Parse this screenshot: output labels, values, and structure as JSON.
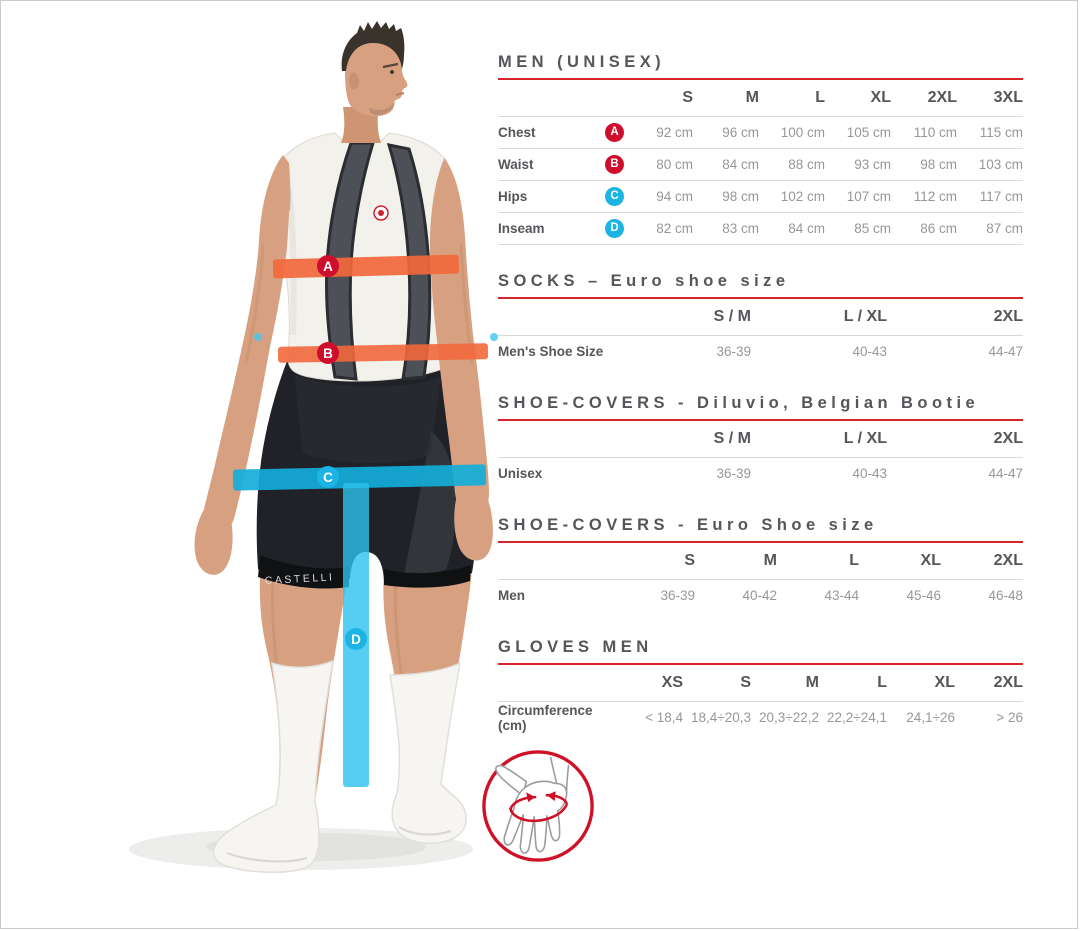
{
  "page": {
    "background": "#FFFFFF",
    "frame_border": "#CBCBCB"
  },
  "colors": {
    "accent_red": "#D6252B",
    "badge_red": "#CE0E2D",
    "badge_cyan": "#1CB4E4",
    "band_orange": "#F2683C",
    "band_cyan": "#13AEDA",
    "band_cyan_bright": "#2CC2EE",
    "heading_text": "#55565A",
    "value_text": "#95979A",
    "divider": "#D8D8D8",
    "hand_icon_red": "#CE1126"
  },
  "figure": {
    "brand": "CASTELLI",
    "markers": [
      {
        "letter": "A",
        "measure": "Chest",
        "badge_color": "#CE0E2D",
        "band_color": "#F2683C"
      },
      {
        "letter": "B",
        "measure": "Waist",
        "badge_color": "#CE0E2D",
        "band_color": "#F2683C"
      },
      {
        "letter": "C",
        "measure": "Hips",
        "badge_color": "#1CB4E4",
        "band_color": "#13AEDA"
      },
      {
        "letter": "D",
        "measure": "Inseam",
        "badge_color": "#1CB4E4",
        "band_color": "#2CC2EE"
      }
    ]
  },
  "tables": [
    {
      "title": "MEN (UNISEX)",
      "has_marker_column": true,
      "row_dividers": true,
      "columns": [
        "S",
        "M",
        "L",
        "XL",
        "2XL",
        "3XL"
      ],
      "rows": [
        {
          "label": "Chest",
          "marker": "A",
          "marker_color": "#CE0E2D",
          "values": [
            "92 cm",
            "96 cm",
            "100 cm",
            "105 cm",
            "110 cm",
            "115 cm"
          ]
        },
        {
          "label": "Waist",
          "marker": "B",
          "marker_color": "#CE0E2D",
          "values": [
            "80 cm",
            "84 cm",
            "88 cm",
            "93 cm",
            "98 cm",
            "103 cm"
          ]
        },
        {
          "label": "Hips",
          "marker": "C",
          "marker_color": "#1CB4E4",
          "values": [
            "94 cm",
            "98 cm",
            "102 cm",
            "107 cm",
            "112 cm",
            "117 cm"
          ]
        },
        {
          "label": "Inseam",
          "marker": "D",
          "marker_color": "#1CB4E4",
          "values": [
            "82 cm",
            "83 cm",
            "84 cm",
            "85 cm",
            "86 cm",
            "87 cm"
          ]
        }
      ]
    },
    {
      "title": "SOCKS – Euro shoe size",
      "has_marker_column": false,
      "row_dividers": false,
      "columns": [
        "S / M",
        "L / XL",
        "2XL"
      ],
      "rows": [
        {
          "label": "Men's Shoe Size",
          "values": [
            "36-39",
            "40-43",
            "44-47"
          ]
        }
      ]
    },
    {
      "title": "SHOE-COVERS - Diluvio, Belgian Bootie",
      "has_marker_column": false,
      "row_dividers": false,
      "columns": [
        "S / M",
        "L / XL",
        "2XL"
      ],
      "rows": [
        {
          "label": "Unisex",
          "values": [
            "36-39",
            "40-43",
            "44-47"
          ]
        }
      ]
    },
    {
      "title": "SHOE-COVERS - Euro Shoe size",
      "has_marker_column": false,
      "row_dividers": false,
      "columns": [
        "S",
        "M",
        "L",
        "XL",
        "2XL"
      ],
      "rows": [
        {
          "label": "Men",
          "values": [
            "36-39",
            "40-42",
            "43-44",
            "45-46",
            "46-48"
          ]
        }
      ]
    },
    {
      "title": "GLOVES MEN",
      "has_marker_column": false,
      "row_dividers": false,
      "columns": [
        "XS",
        "S",
        "M",
        "L",
        "XL",
        "2XL"
      ],
      "rows": [
        {
          "label": "Circumference (cm)",
          "values": [
            "< 18,4",
            "18,4÷20,3",
            "20,3÷22,2",
            "22,2÷24,1",
            "24,1÷26",
            "> 26"
          ]
        }
      ]
    }
  ]
}
